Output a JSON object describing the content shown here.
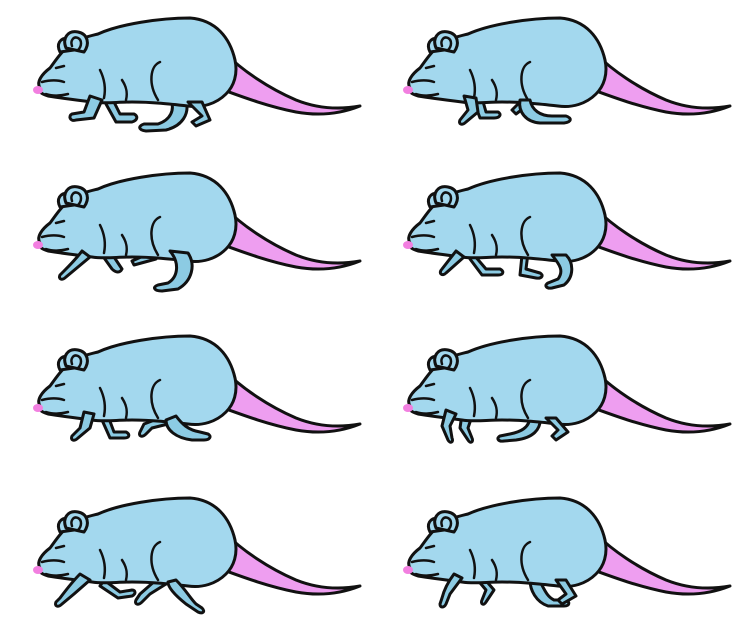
{
  "sheet": {
    "frames": [
      {
        "pose": "stride-a"
      },
      {
        "pose": "stride-b"
      },
      {
        "pose": "crouch-a"
      },
      {
        "pose": "crouch-b"
      },
      {
        "pose": "gather-a"
      },
      {
        "pose": "gather-b"
      },
      {
        "pose": "push-a"
      },
      {
        "pose": "push-b"
      }
    ]
  },
  "colors": {
    "body": "#a3d8ee",
    "leg": "#8ccbe3",
    "tail": "#ee9ef0",
    "nose": "#f27fe0",
    "outline": "#111111",
    "background": "#ffffff"
  }
}
